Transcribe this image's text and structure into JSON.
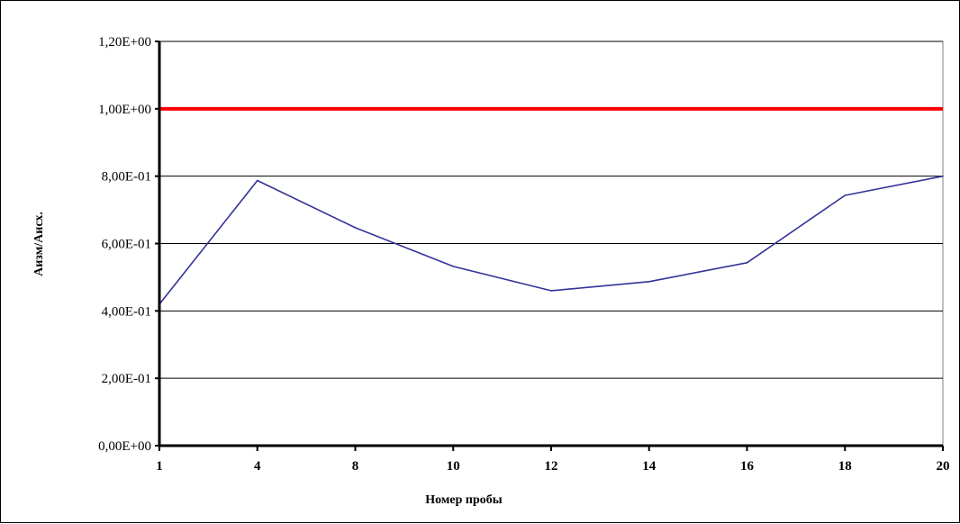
{
  "chart_data": {
    "type": "line",
    "title": "",
    "xlabel": "Номер пробы",
    "ylabel": "Аизм/Аисх.",
    "categories": [
      "1",
      "4",
      "8",
      "10",
      "12",
      "14",
      "16",
      "18",
      "20"
    ],
    "series": [
      {
        "values": [
          0.42,
          0.787,
          0.647,
          0.532,
          0.46,
          0.487,
          0.543,
          0.743,
          0.8
        ],
        "color": "#333399"
      }
    ],
    "reference_line": {
      "value": 1.0,
      "color": "#ff0000"
    },
    "ylim": [
      0,
      1.2
    ],
    "yticks": [
      0,
      0.2,
      0.4,
      0.6,
      0.8,
      1.0,
      1.2
    ],
    "ytick_labels": [
      "0,00E+00",
      "2,00E-01",
      "4,00E-01",
      "6,00E-01",
      "8,00E-01",
      "1,00E+00",
      "1,20E+00"
    ],
    "grid": "horizontal",
    "legend": "none"
  }
}
